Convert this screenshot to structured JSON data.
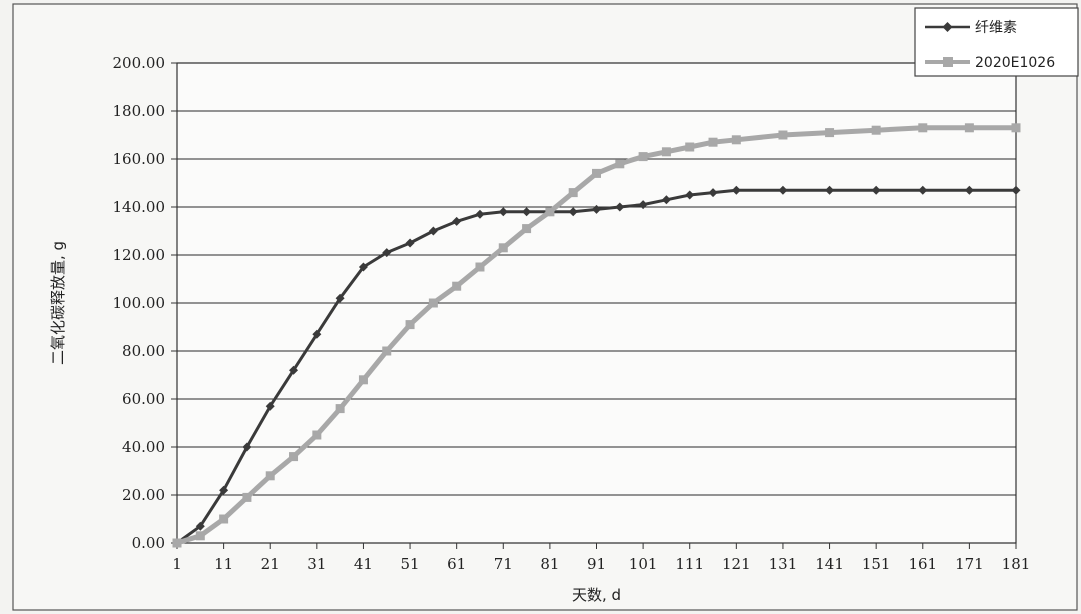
{
  "chart_data": {
    "type": "line",
    "title": "",
    "xlabel": "天数, d",
    "ylabel": "二氧化碳释放量, g",
    "xlim": [
      1,
      181
    ],
    "ylim": [
      0,
      200
    ],
    "x_ticks": [
      "1",
      "11",
      "21",
      "31",
      "41",
      "51",
      "61",
      "71",
      "81",
      "91",
      "101",
      "111",
      "121",
      "131",
      "141",
      "151",
      "161",
      "171",
      "181"
    ],
    "y_ticks": [
      "0.00",
      "20.00",
      "40.00",
      "60.00",
      "80.00",
      "100.00",
      "120.00",
      "140.00",
      "160.00",
      "180.00",
      "200.00"
    ],
    "grid": "horizontal",
    "legend_position": "top-right",
    "series": [
      {
        "name": "纤维素",
        "color": "#3a3a3a",
        "marker": "diamond",
        "x": [
          1,
          6,
          11,
          16,
          21,
          26,
          31,
          36,
          41,
          46,
          51,
          56,
          61,
          66,
          71,
          76,
          81,
          86,
          91,
          96,
          101,
          106,
          111,
          116,
          121,
          131,
          141,
          151,
          161,
          171,
          181
        ],
        "values": [
          0,
          7,
          22,
          40,
          57,
          72,
          87,
          102,
          115,
          121,
          125,
          130,
          134,
          137,
          138,
          138,
          138,
          138,
          139,
          140,
          141,
          143,
          145,
          146,
          147,
          147,
          147,
          147,
          147,
          147,
          147
        ]
      },
      {
        "name": "2020E1026",
        "color": "#a8a8a8",
        "marker": "square",
        "x": [
          1,
          6,
          11,
          16,
          21,
          26,
          31,
          36,
          41,
          46,
          51,
          56,
          61,
          66,
          71,
          76,
          81,
          86,
          91,
          96,
          101,
          106,
          111,
          116,
          121,
          131,
          141,
          151,
          161,
          171,
          181
        ],
        "values": [
          0,
          3,
          10,
          19,
          28,
          36,
          45,
          56,
          68,
          80,
          91,
          100,
          107,
          115,
          123,
          131,
          138,
          146,
          154,
          158,
          161,
          163,
          165,
          167,
          168,
          170,
          171,
          172,
          173,
          173,
          173
        ]
      }
    ]
  }
}
